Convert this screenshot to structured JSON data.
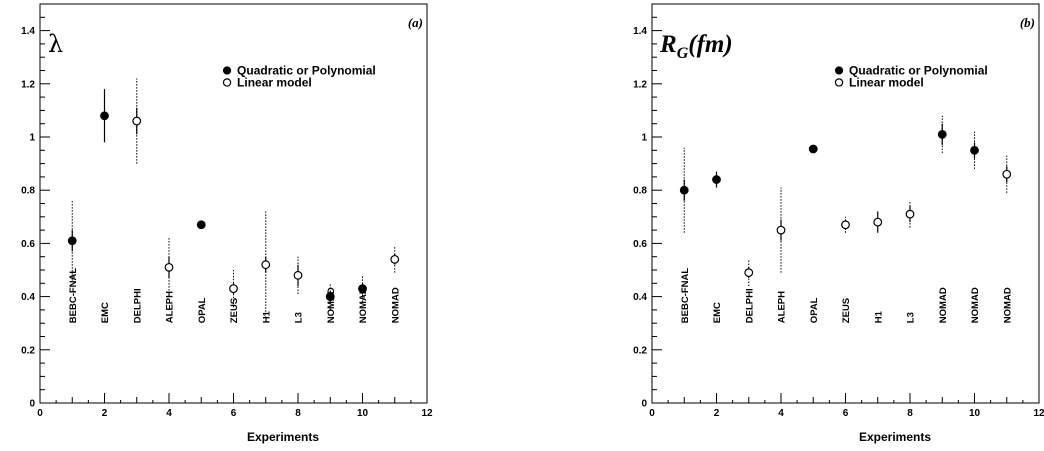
{
  "legend": {
    "filled_label": "Quadratic or Polynomial",
    "open_label": "Linear model"
  },
  "chart_data": [
    {
      "type": "scatter",
      "title": "λ",
      "panel_label": "(a)",
      "xlabel": "Experiments",
      "ylabel": "",
      "xlim": [
        0,
        12
      ],
      "ylim": [
        0,
        1.5
      ],
      "xticks": [
        0,
        2,
        4,
        6,
        8,
        10,
        12
      ],
      "yticks": [
        0,
        0.2,
        0.4,
        0.6,
        0.8,
        1,
        1.2,
        1.4
      ],
      "ytick_labels": [
        "0",
        "0.2",
        "0.4",
        "0.6",
        "0.8",
        "1",
        "1.2",
        "1.4"
      ],
      "legend_position": "top-right",
      "grid": false,
      "experiments": [
        {
          "x": 1,
          "name": "BEBC-FNAL"
        },
        {
          "x": 2,
          "name": "EMC"
        },
        {
          "x": 3,
          "name": "DELPHI"
        },
        {
          "x": 4,
          "name": "ALEPH"
        },
        {
          "x": 5,
          "name": "OPAL"
        },
        {
          "x": 6,
          "name": "ZEUS"
        },
        {
          "x": 7,
          "name": "H1"
        },
        {
          "x": 8,
          "name": "L3"
        },
        {
          "x": 9,
          "name": "NOMAD"
        },
        {
          "x": 10,
          "name": "NOMAD"
        },
        {
          "x": 11,
          "name": "NOMAD"
        }
      ],
      "points": [
        {
          "x": 1,
          "y": 0.61,
          "model": "filled",
          "stat": [
            0.57,
            0.65
          ],
          "sys": [
            0.46,
            0.76
          ]
        },
        {
          "x": 2,
          "y": 1.08,
          "model": "filled",
          "stat": [
            0.98,
            1.18
          ],
          "sys": null
        },
        {
          "x": 3,
          "y": 1.06,
          "model": "open",
          "stat": [
            1.01,
            1.11
          ],
          "sys": [
            0.9,
            1.22
          ]
        },
        {
          "x": 4,
          "y": 0.51,
          "model": "open",
          "stat": [
            0.47,
            0.55
          ],
          "sys": [
            0.4,
            0.62
          ]
        },
        {
          "x": 5,
          "y": 0.67,
          "model": "filled",
          "stat": [
            0.655,
            0.685
          ],
          "sys": null
        },
        {
          "x": 6,
          "y": 0.43,
          "model": "open",
          "stat": [
            0.41,
            0.45
          ],
          "sys": [
            0.36,
            0.5
          ]
        },
        {
          "x": 7,
          "y": 0.52,
          "model": "open",
          "stat": [
            0.49,
            0.55
          ],
          "sys": [
            0.32,
            0.72
          ]
        },
        {
          "x": 8,
          "y": 0.48,
          "model": "open",
          "stat": [
            0.44,
            0.52
          ],
          "sys": [
            0.41,
            0.55
          ]
        },
        {
          "x": 9,
          "y": 0.4,
          "model": "filled",
          "stat": [
            0.38,
            0.42
          ],
          "sys": [
            0.35,
            0.45
          ]
        },
        {
          "x": 10,
          "y": 0.43,
          "model": "filled",
          "stat": [
            0.41,
            0.45
          ],
          "sys": [
            0.38,
            0.48
          ]
        },
        {
          "x": 11,
          "y": 0.54,
          "model": "open",
          "stat": [
            0.52,
            0.56
          ],
          "sys": [
            0.49,
            0.59
          ]
        }
      ]
    },
    {
      "type": "scatter",
      "title": "R_G(fm)",
      "title_main": "R",
      "title_sub": "G",
      "title_rest": "(fm)",
      "panel_label": "(b)",
      "xlabel": "Experiments",
      "ylabel": "",
      "xlim": [
        0,
        12
      ],
      "ylim": [
        0,
        1.5
      ],
      "xticks": [
        0,
        2,
        4,
        6,
        8,
        10,
        12
      ],
      "yticks": [
        0,
        0.2,
        0.4,
        0.6,
        0.8,
        1,
        1.2,
        1.4
      ],
      "ytick_labels": [
        "0",
        "0.2",
        "0.4",
        "0.6",
        "0.8",
        "1",
        "1.2",
        "1.4"
      ],
      "legend_position": "top-right",
      "grid": false,
      "experiments": [
        {
          "x": 1,
          "name": "BEBC-FNAL"
        },
        {
          "x": 2,
          "name": "EMC"
        },
        {
          "x": 3,
          "name": "DELPHI"
        },
        {
          "x": 4,
          "name": "ALEPH"
        },
        {
          "x": 5,
          "name": "OPAL"
        },
        {
          "x": 6,
          "name": "ZEUS"
        },
        {
          "x": 7,
          "name": "H1"
        },
        {
          "x": 8,
          "name": "L3"
        },
        {
          "x": 9,
          "name": "NOMAD"
        },
        {
          "x": 10,
          "name": "NOMAD"
        },
        {
          "x": 11,
          "name": "NOMAD"
        }
      ],
      "points": [
        {
          "x": 1,
          "y": 0.8,
          "model": "filled",
          "stat": [
            0.76,
            0.84
          ],
          "sys": [
            0.64,
            0.96
          ]
        },
        {
          "x": 2,
          "y": 0.84,
          "model": "filled",
          "stat": [
            0.81,
            0.87
          ],
          "sys": null
        },
        {
          "x": 3,
          "y": 0.49,
          "model": "open",
          "stat": [
            0.47,
            0.51
          ],
          "sys": [
            0.44,
            0.54
          ]
        },
        {
          "x": 4,
          "y": 0.65,
          "model": "open",
          "stat": [
            0.61,
            0.69
          ],
          "sys": [
            0.49,
            0.81
          ]
        },
        {
          "x": 5,
          "y": 0.955,
          "model": "filled",
          "stat": [
            0.945,
            0.965
          ],
          "sys": null
        },
        {
          "x": 6,
          "y": 0.67,
          "model": "open",
          "stat": [
            0.65,
            0.69
          ],
          "sys": [
            0.64,
            0.7
          ]
        },
        {
          "x": 7,
          "y": 0.68,
          "model": "open",
          "stat": [
            0.64,
            0.72
          ],
          "sys": null
        },
        {
          "x": 8,
          "y": 0.71,
          "model": "open",
          "stat": [
            0.68,
            0.74
          ],
          "sys": [
            0.66,
            0.76
          ]
        },
        {
          "x": 9,
          "y": 1.01,
          "model": "filled",
          "stat": [
            0.97,
            1.05
          ],
          "sys": [
            0.94,
            1.08
          ]
        },
        {
          "x": 10,
          "y": 0.95,
          "model": "filled",
          "stat": [
            0.92,
            0.98
          ],
          "sys": [
            0.88,
            1.02
          ]
        },
        {
          "x": 11,
          "y": 0.86,
          "model": "open",
          "stat": [
            0.83,
            0.89
          ],
          "sys": [
            0.79,
            0.93
          ]
        }
      ]
    }
  ]
}
